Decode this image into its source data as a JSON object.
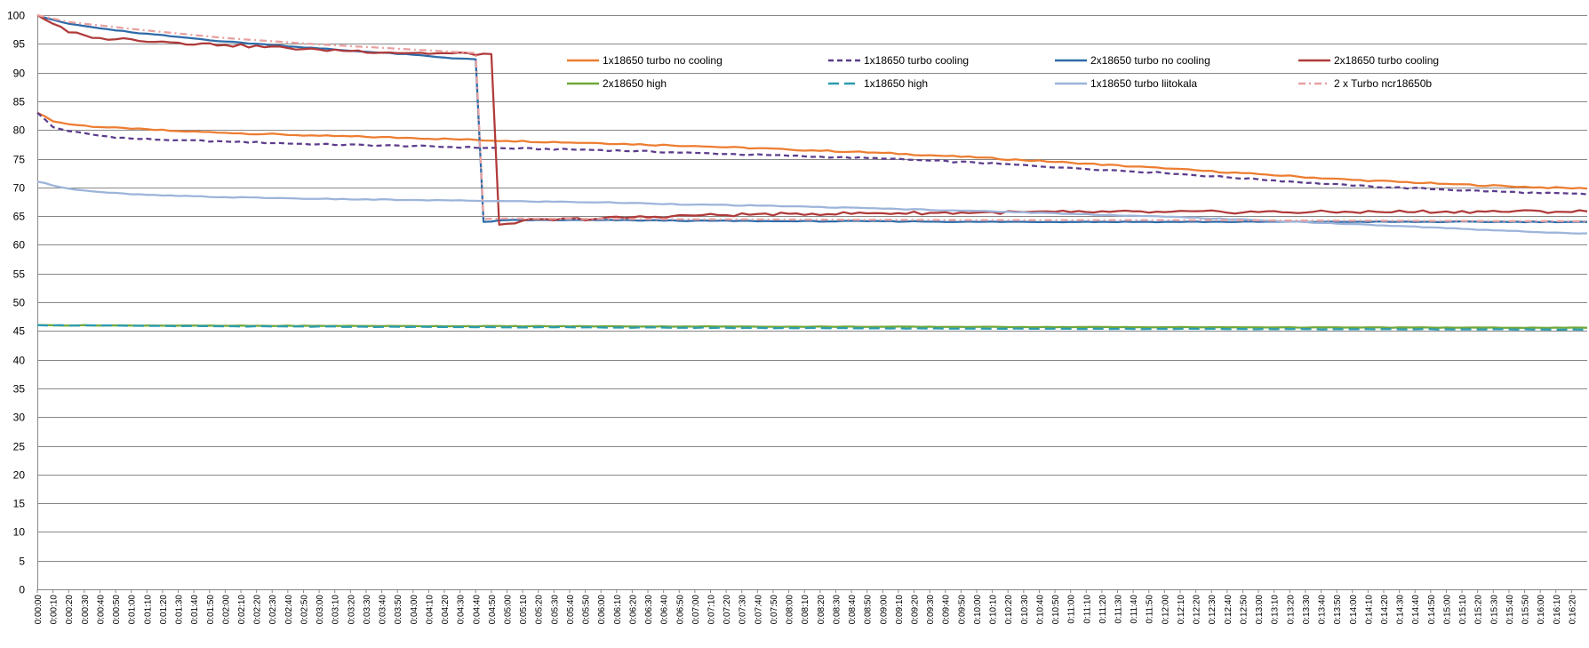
{
  "chart_data": {
    "type": "line",
    "title": "",
    "xlabel": "",
    "ylabel": "",
    "ylim": [
      0,
      100
    ],
    "y_ticks": [
      0,
      5,
      10,
      15,
      20,
      25,
      30,
      35,
      40,
      45,
      50,
      55,
      60,
      65,
      70,
      75,
      80,
      85,
      90,
      95,
      100
    ],
    "y_tick_labels": [
      "0",
      "5",
      "10",
      "15",
      "20",
      "25",
      "30",
      "35",
      "40",
      "45",
      "50",
      "55",
      "60",
      "65",
      "70",
      "75",
      "80",
      "85",
      "90",
      "95",
      "100"
    ],
    "grid": "horizontal",
    "legend_position": "top-right",
    "x_tick_labels": [
      "0:00:00",
      "0:00:10",
      "0:00:20",
      "0:00:30",
      "0:00:40",
      "0:00:50",
      "0:01:00",
      "0:01:10",
      "0:01:20",
      "0:01:30",
      "0:01:40",
      "0:01:50",
      "0:02:00",
      "0:02:10",
      "0:02:20",
      "0:02:30",
      "0:02:40",
      "0:02:50",
      "0:03:00",
      "0:03:10",
      "0:03:20",
      "0:03:30",
      "0:03:40",
      "0:03:50",
      "0:04:00",
      "0:04:10",
      "0:04:20",
      "0:04:30",
      "0:04:40",
      "0:04:50",
      "0:05:00",
      "0:05:10",
      "0:05:20",
      "0:05:30",
      "0:05:40",
      "0:05:50",
      "0:06:00",
      "0:06:10",
      "0:06:20",
      "0:06:30",
      "0:06:40",
      "0:06:50",
      "0:07:00",
      "0:07:10",
      "0:07:20",
      "0:07:30",
      "0:07:40",
      "0:07:50",
      "0:08:00",
      "0:08:10",
      "0:08:20",
      "0:08:30",
      "0:08:40",
      "0:08:50",
      "0:09:00",
      "0:09:10",
      "0:09:20",
      "0:09:30",
      "0:09:40",
      "0:09:50",
      "0:10:00",
      "0:10:10",
      "0:10:20",
      "0:10:30",
      "0:10:40",
      "0:10:50",
      "0:11:00",
      "0:11:10",
      "0:11:20",
      "0:11:30",
      "0:11:40",
      "0:11:50",
      "0:12:00",
      "0:12:10",
      "0:12:20",
      "0:12:30",
      "0:12:40",
      "0:12:50",
      "0:13:00",
      "0:13:10",
      "0:13:20",
      "0:13:30",
      "0:13:40",
      "0:13:50",
      "0:14:00",
      "0:14:10",
      "0:14:20",
      "0:14:30",
      "0:14:40",
      "0:14:50",
      "0:15:00",
      "0:15:10",
      "0:15:20",
      "0:15:30",
      "0:15:40",
      "0:15:50",
      "0:16:00",
      "0:16:10",
      "0:16:20"
    ],
    "series": [
      {
        "name": "1x18650 turbo no cooling",
        "color": "#ED7D31",
        "dash": "solid",
        "points": [
          [
            "0:00:00",
            83
          ],
          [
            "0:00:10",
            81.5
          ],
          [
            "0:00:20",
            81
          ],
          [
            "0:00:40",
            80.5
          ],
          [
            "0:01:00",
            80.2
          ],
          [
            "0:01:30",
            79.8
          ],
          [
            "0:02:00",
            79.5
          ],
          [
            "0:03:00",
            79
          ],
          [
            "0:04:00",
            78.6
          ],
          [
            "0:05:00",
            78.1
          ],
          [
            "0:06:00",
            77.7
          ],
          [
            "0:07:00",
            77.2
          ],
          [
            "0:08:00",
            76.6
          ],
          [
            "0:09:00",
            76
          ],
          [
            "0:10:00",
            75.2
          ],
          [
            "0:11:00",
            74.3
          ],
          [
            "0:12:00",
            73.3
          ],
          [
            "0:13:00",
            72.3
          ],
          [
            "0:14:00",
            71.3
          ],
          [
            "0:15:00",
            70.6
          ],
          [
            "0:16:00",
            70
          ],
          [
            "0:16:30",
            69.8
          ]
        ]
      },
      {
        "name": "1x18650 turbo cooling",
        "color": "#5C3C8C",
        "dash": "dash",
        "points": [
          [
            "0:00:00",
            83
          ],
          [
            "0:00:10",
            80.5
          ],
          [
            "0:00:20",
            79.8
          ],
          [
            "0:00:40",
            79
          ],
          [
            "0:01:00",
            78.5
          ],
          [
            "0:01:30",
            78.2
          ],
          [
            "0:02:00",
            78
          ],
          [
            "0:03:00",
            77.5
          ],
          [
            "0:04:00",
            77.2
          ],
          [
            "0:05:00",
            76.8
          ],
          [
            "0:06:00",
            76.5
          ],
          [
            "0:07:00",
            76
          ],
          [
            "0:08:00",
            75.5
          ],
          [
            "0:09:00",
            75
          ],
          [
            "0:10:00",
            74.3
          ],
          [
            "0:11:00",
            73.4
          ],
          [
            "0:12:00",
            72.5
          ],
          [
            "0:13:00",
            71.4
          ],
          [
            "0:14:00",
            70.3
          ],
          [
            "0:15:00",
            69.6
          ],
          [
            "0:16:00",
            69
          ],
          [
            "0:16:30",
            68.8
          ]
        ]
      },
      {
        "name": "2x18650 turbo no cooling",
        "color": "#2E6BA8",
        "dash": "solid",
        "points": [
          [
            "0:00:00",
            100
          ],
          [
            "0:00:10",
            99.2
          ],
          [
            "0:00:20",
            98.5
          ],
          [
            "0:00:40",
            97.7
          ],
          [
            "0:01:00",
            97
          ],
          [
            "0:01:30",
            96.2
          ],
          [
            "0:02:00",
            95.4
          ],
          [
            "0:03:00",
            94.2
          ],
          [
            "0:03:30",
            93.6
          ],
          [
            "0:04:00",
            93.1
          ],
          [
            "0:04:20",
            92.6
          ],
          [
            "0:04:40",
            92.3
          ],
          [
            "0:04:45",
            64
          ],
          [
            "0:05:00",
            64.3
          ],
          [
            "0:06:00",
            64.3
          ],
          [
            "0:07:00",
            64.2
          ],
          [
            "0:08:00",
            64.1
          ],
          [
            "0:09:00",
            64.1
          ],
          [
            "0:10:00",
            64
          ],
          [
            "0:11:00",
            64
          ],
          [
            "0:12:00",
            64
          ],
          [
            "0:13:00",
            64
          ],
          [
            "0:14:00",
            64
          ],
          [
            "0:15:00",
            64
          ],
          [
            "0:16:30",
            64
          ]
        ]
      },
      {
        "name": "2x18650 turbo cooling",
        "color": "#B03A3A",
        "dash": "solid",
        "points": [
          [
            "0:00:00",
            100
          ],
          [
            "0:00:10",
            98.5
          ],
          [
            "0:00:20",
            97
          ],
          [
            "0:00:30",
            96.5
          ],
          [
            "0:00:40",
            96
          ],
          [
            "0:01:00",
            95.8
          ],
          [
            "0:01:30",
            95.2
          ],
          [
            "0:02:00",
            94.8
          ],
          [
            "0:03:00",
            94
          ],
          [
            "0:04:00",
            93.4
          ],
          [
            "0:04:50",
            93.2
          ],
          [
            "0:04:55",
            63.5
          ],
          [
            "0:05:10",
            64.2
          ],
          [
            "0:06:00",
            64.6
          ],
          [
            "0:07:00",
            65.1
          ],
          [
            "0:08:00",
            65.4
          ],
          [
            "0:09:00",
            65.5
          ],
          [
            "0:10:00",
            65.6
          ],
          [
            "0:11:00",
            65.7
          ],
          [
            "0:12:00",
            65.7
          ],
          [
            "0:13:00",
            65.7
          ],
          [
            "0:14:00",
            65.7
          ],
          [
            "0:15:00",
            65.8
          ],
          [
            "0:16:30",
            65.8
          ]
        ]
      },
      {
        "name": "2x18650 high",
        "color": "#70A83A",
        "dash": "solid",
        "points": [
          [
            "0:00:00",
            46
          ],
          [
            "0:01:00",
            45.95
          ],
          [
            "0:02:00",
            45.9
          ],
          [
            "0:04:00",
            45.85
          ],
          [
            "0:06:00",
            45.8
          ],
          [
            "0:08:00",
            45.75
          ],
          [
            "0:10:00",
            45.7
          ],
          [
            "0:12:00",
            45.65
          ],
          [
            "0:14:00",
            45.6
          ],
          [
            "0:16:30",
            45.55
          ]
        ]
      },
      {
        "name": "1x18650 high",
        "color": "#2B9CB0",
        "dash": "longdash",
        "points": [
          [
            "0:00:00",
            46
          ],
          [
            "0:01:00",
            45.9
          ],
          [
            "0:02:00",
            45.8
          ],
          [
            "0:04:00",
            45.7
          ],
          [
            "0:06:00",
            45.6
          ],
          [
            "0:08:00",
            45.5
          ],
          [
            "0:10:00",
            45.4
          ],
          [
            "0:12:00",
            45.35
          ],
          [
            "0:14:00",
            45.3
          ],
          [
            "0:16:30",
            45.25
          ]
        ]
      },
      {
        "name": "1x18650 turbo liitokala",
        "color": "#9DB4DA",
        "dash": "solid",
        "points": [
          [
            "0:00:00",
            71
          ],
          [
            "0:00:20",
            69.8
          ],
          [
            "0:00:40",
            69.2
          ],
          [
            "0:01:00",
            68.8
          ],
          [
            "0:01:30",
            68.5
          ],
          [
            "0:02:00",
            68.3
          ],
          [
            "0:03:00",
            68
          ],
          [
            "0:04:00",
            67.8
          ],
          [
            "0:05:00",
            67.6
          ],
          [
            "0:06:00",
            67.4
          ],
          [
            "0:07:00",
            67
          ],
          [
            "0:08:00",
            66.7
          ],
          [
            "0:09:00",
            66.3
          ],
          [
            "0:10:00",
            65.9
          ],
          [
            "0:11:00",
            65.4
          ],
          [
            "0:12:00",
            64.9
          ],
          [
            "0:13:00",
            64.3
          ],
          [
            "0:14:00",
            63.6
          ],
          [
            "0:15:00",
            62.9
          ],
          [
            "0:16:00",
            62.2
          ],
          [
            "0:16:30",
            62
          ]
        ]
      },
      {
        "name": "2 x Turbo ncr18650b",
        "color": "#E8A0A0",
        "dash": "dashdot",
        "points": [
          [
            "0:00:00",
            100
          ],
          [
            "0:00:20",
            98.8
          ],
          [
            "0:01:00",
            97.6
          ],
          [
            "0:02:00",
            96
          ],
          [
            "0:03:00",
            94.9
          ],
          [
            "0:04:00",
            94
          ],
          [
            "0:04:40",
            93.4
          ],
          [
            "0:04:45",
            64.5
          ],
          [
            "0:05:00",
            64.6
          ],
          [
            "0:06:00",
            64.5
          ],
          [
            "0:08:00",
            64.4
          ],
          [
            "0:10:00",
            64.3
          ],
          [
            "0:12:00",
            64.3
          ],
          [
            "0:14:00",
            64.2
          ],
          [
            "0:16:30",
            64.1
          ]
        ]
      }
    ]
  }
}
